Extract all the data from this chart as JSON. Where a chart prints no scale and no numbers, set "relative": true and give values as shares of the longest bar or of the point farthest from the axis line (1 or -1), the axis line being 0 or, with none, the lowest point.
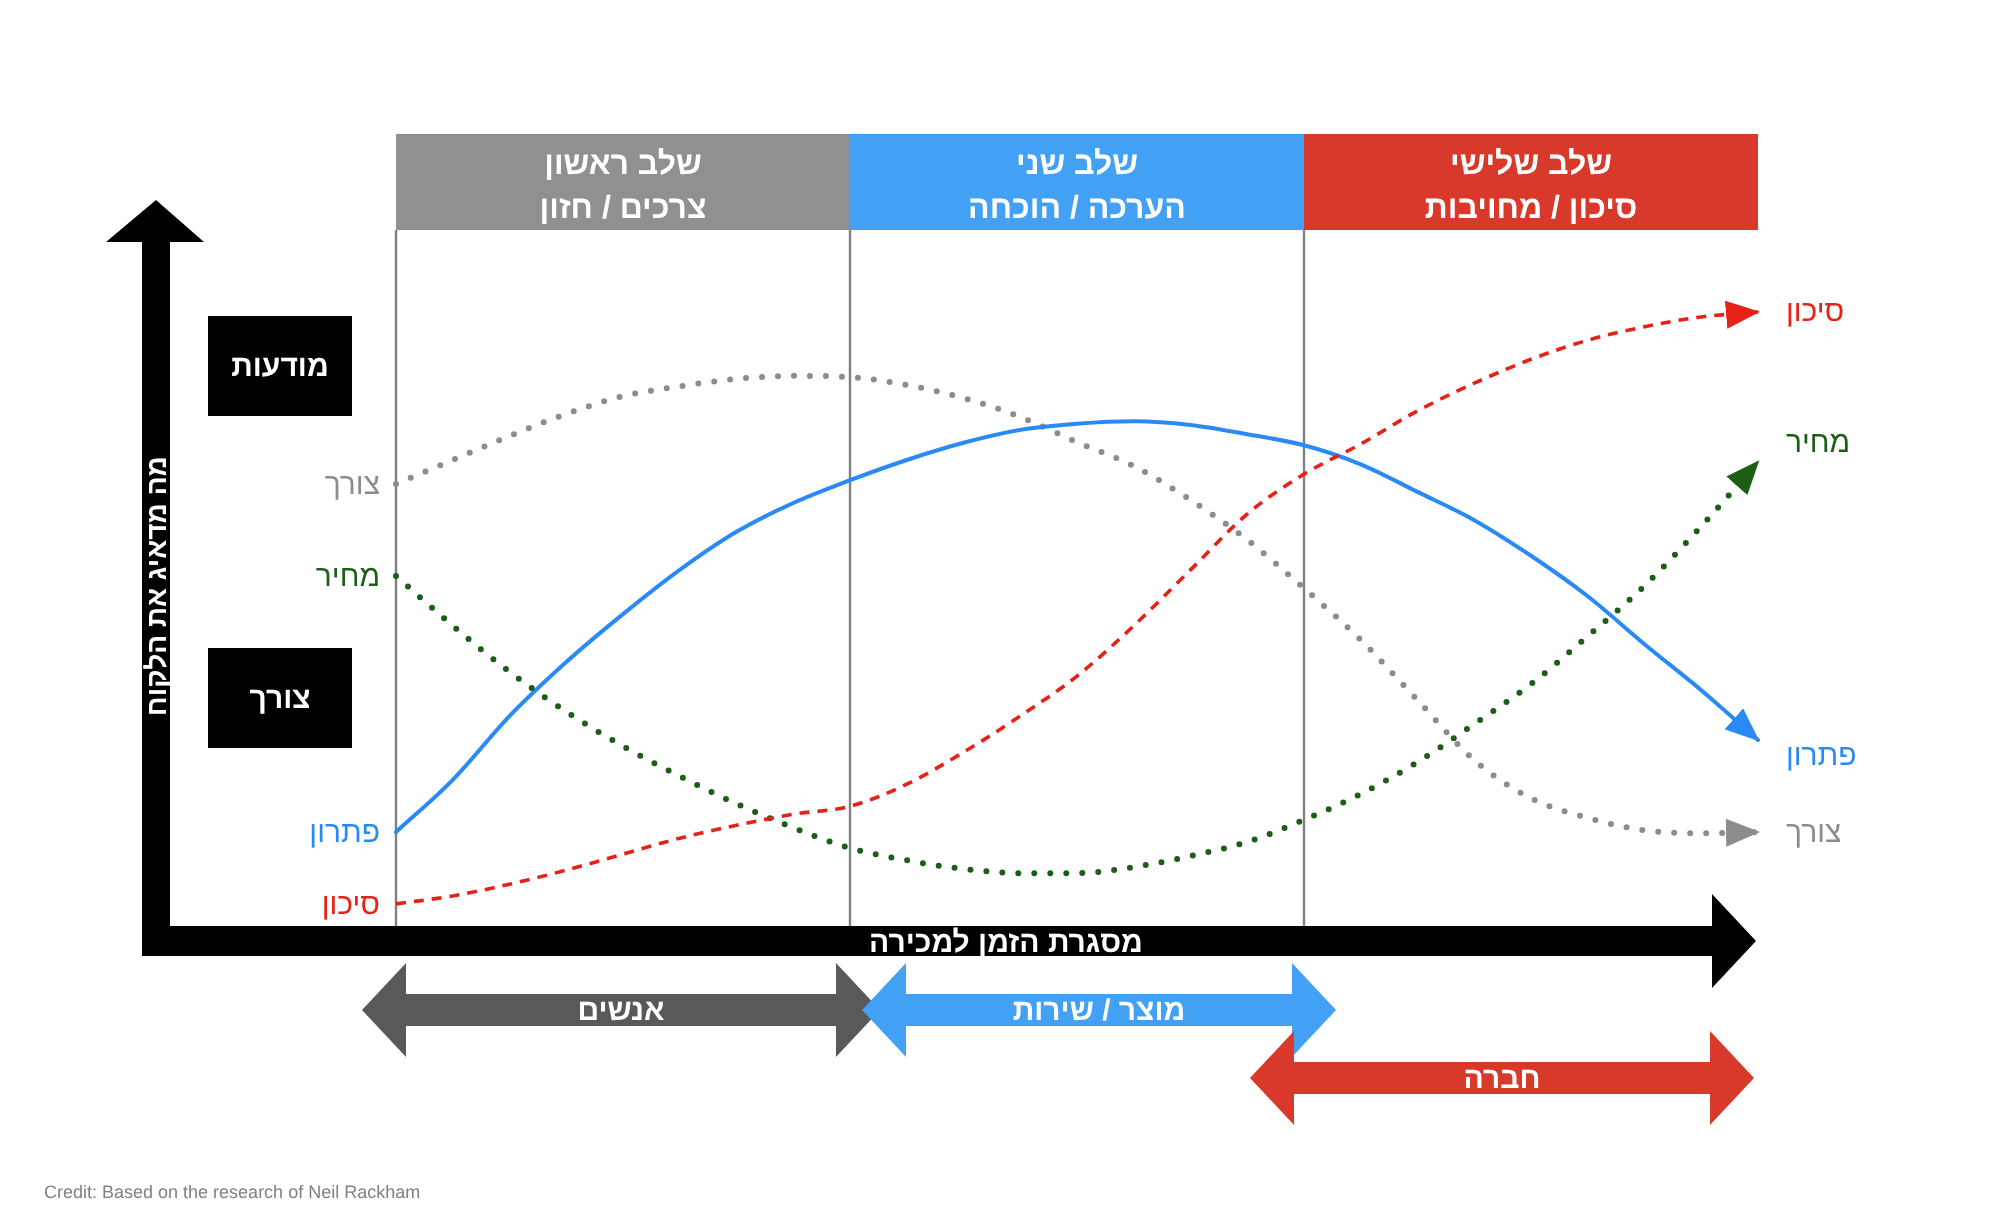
{
  "chart_data": {
    "type": "line",
    "relative": true,
    "grid": "x",
    "xlabel": "מסגרת הזמן למכירה",
    "categories": [
      null,
      null,
      null,
      null,
      null,
      null,
      null,
      null,
      null,
      null,
      null,
      null,
      null,
      null,
      null,
      null,
      null,
      null,
      null,
      null,
      null,
      null,
      null,
      null,
      null
    ],
    "series": [
      {
        "name": "צורך",
        "color": "#8c8c8c",
        "line_style": "dotted",
        "values": [
          0.72,
          0.759,
          0.798,
          0.834,
          0.863,
          0.879,
          0.891,
          0.896,
          0.894,
          0.881,
          0.86,
          0.829,
          0.788,
          0.749,
          0.694,
          0.629,
          0.55,
          0.466,
          0.368,
          0.27,
          0.208,
          0.176,
          0.156,
          0.151,
          0.153
        ]
      },
      {
        "name": "פתרון",
        "color": "#2a8af5",
        "line_style": "solid",
        "values": [
          0.153,
          0.238,
          0.342,
          0.43,
          0.508,
          0.58,
          0.642,
          0.689,
          0.726,
          0.759,
          0.787,
          0.808,
          0.818,
          0.822,
          0.816,
          0.801,
          0.783,
          0.752,
          0.707,
          0.661,
          0.603,
          0.537,
          0.459,
          0.384,
          0.303
        ]
      },
      {
        "name": "מחיר",
        "color": "#1b5e16",
        "line_style": "dotted",
        "values": [
          0.57,
          0.489,
          0.414,
          0.349,
          0.293,
          0.244,
          0.199,
          0.16,
          0.127,
          0.107,
          0.093,
          0.086,
          0.086,
          0.096,
          0.114,
          0.137,
          0.173,
          0.215,
          0.267,
          0.329,
          0.394,
          0.472,
          0.554,
          0.651,
          0.756
        ]
      },
      {
        "name": "סיכון",
        "color": "#e62117",
        "line_style": "dashed",
        "values": [
          0.036,
          0.049,
          0.068,
          0.091,
          0.117,
          0.143,
          0.164,
          0.182,
          0.195,
          0.231,
          0.283,
          0.342,
          0.407,
          0.489,
          0.58,
          0.671,
          0.736,
          0.785,
          0.839,
          0.884,
          0.923,
          0.954,
          0.976,
          0.992,
          1.0
        ]
      }
    ],
    "annotations": [
      "שלב ראשון\nצרכים / חזון",
      "שלב שני\nהערכה / הוכחה",
      "שלב שלישי\nסיכון / מחויבות",
      "מה מדאיג את הלקוח",
      "מודעות",
      "צורך",
      "אנשים",
      "מוצר / שירות",
      "חברה",
      "Credit: Based on the research of Neil Rackham"
    ]
  }
}
